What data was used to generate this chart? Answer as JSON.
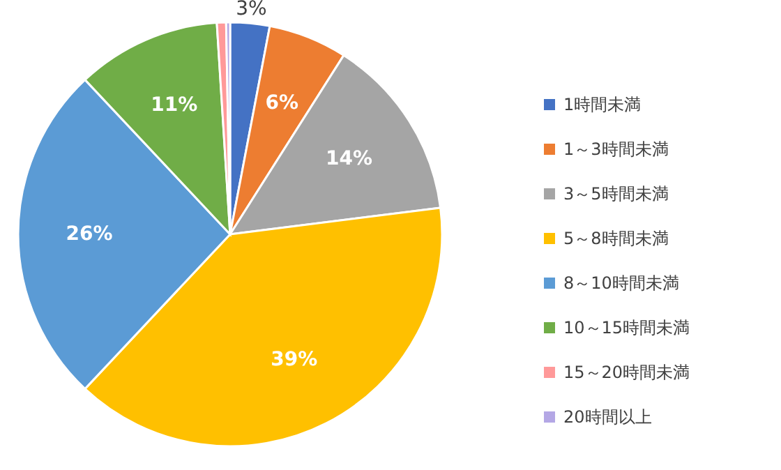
{
  "chart_data": {
    "type": "pie",
    "categories": [
      "1時間未満",
      "1～3時間未満",
      "3～5時間未満",
      "5～8時間未満",
      "8～10時間未満",
      "10～15時間未満",
      "15～20時間未満",
      "20時間以上"
    ],
    "values": [
      3,
      6,
      14,
      39,
      26,
      11,
      0.7,
      0.3
    ],
    "colors": [
      "#4472c4",
      "#ed7d31",
      "#a5a5a5",
      "#ffc000",
      "#5b9bd5",
      "#70ad47",
      "#ff9999",
      "#b4a7e5"
    ],
    "value_labels": [
      "3%",
      "6%",
      "14%",
      "39%",
      "26%",
      "11%",
      null,
      null
    ],
    "legend": "right"
  }
}
